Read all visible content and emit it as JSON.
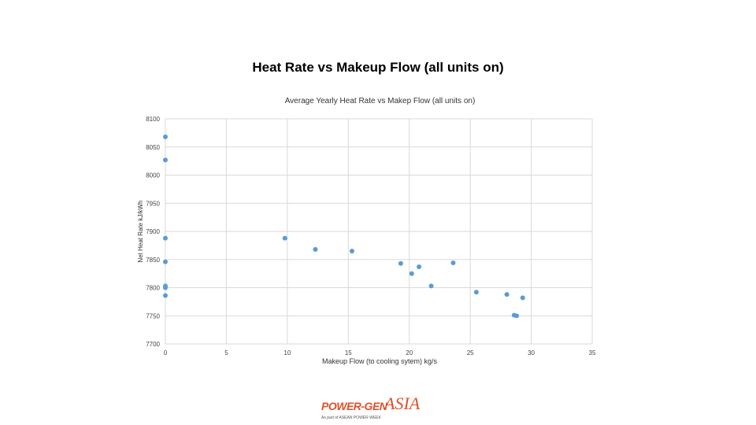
{
  "slide": {
    "title": "Heat Rate vs Makeup Flow (all units on)"
  },
  "chart_data": {
    "type": "scatter",
    "title": "Average Yearly Heat Rate vs Makep Flow (all units on)",
    "xlabel": "Makeup Flow (to cooling sytem) kg/s",
    "ylabel": "Net Heat Rate kJ/kWh",
    "xlim": [
      0,
      35
    ],
    "ylim": [
      7700,
      8100
    ],
    "xticks": [
      0,
      5,
      10,
      15,
      20,
      25,
      30,
      35
    ],
    "yticks": [
      7700,
      7750,
      7800,
      7850,
      7900,
      7950,
      8000,
      8050,
      8100
    ],
    "grid": true,
    "marker_color": "#5b9bd5",
    "series": [
      {
        "x": [
          0,
          0,
          0,
          0,
          0,
          0,
          0,
          9.8,
          12.3,
          15.3,
          19.3,
          20.2,
          20.8,
          21.8,
          23.6,
          25.5,
          28.0,
          28.6,
          28.8,
          29.3
        ],
        "y": [
          8068,
          8027,
          7888,
          7846,
          7803,
          7800,
          7786,
          7888,
          7868,
          7865,
          7843,
          7825,
          7837,
          7803,
          7844,
          7792,
          7788,
          7751,
          7750,
          7782
        ]
      }
    ]
  },
  "logo": {
    "brand": "POWER-GEN",
    "region": "ASIA",
    "tagline": "As part of ASEAN POWER WEEK"
  }
}
